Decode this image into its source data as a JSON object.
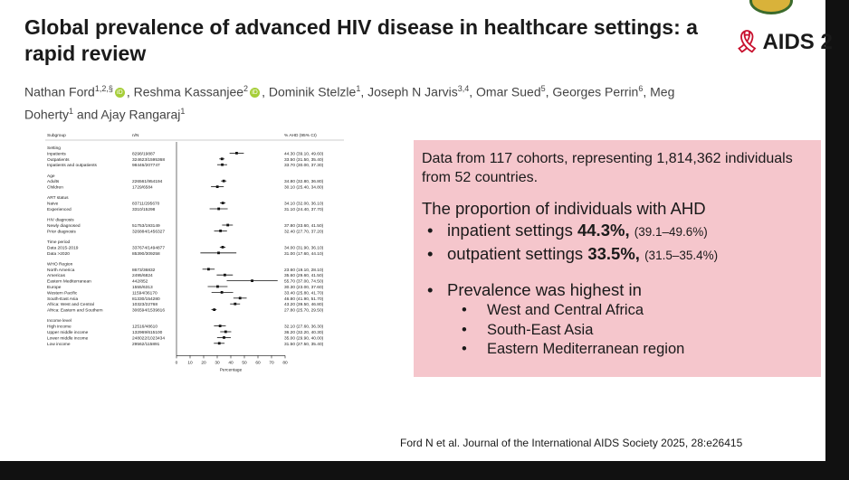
{
  "title": "Global prevalence of advanced HIV disease in healthcare settings: a rapid review",
  "logo_text": "AIDS 2",
  "authors": [
    {
      "name": "Nathan Ford",
      "sup": "1,2,§",
      "orcid": true,
      "sep": ", "
    },
    {
      "name": "Reshma Kassanjee",
      "sup": "2",
      "orcid": true,
      "sep": ", "
    },
    {
      "name": "Dominik Stelzle",
      "sup": "1",
      "orcid": false,
      "sep": ", "
    },
    {
      "name": "Joseph N Jarvis",
      "sup": "3,4",
      "orcid": false,
      "sep": ", "
    },
    {
      "name": "Omar Sued",
      "sup": "5",
      "orcid": false,
      "sep": ", "
    },
    {
      "name": "Georges Perrin",
      "sup": "6",
      "orcid": false,
      "sep": ", "
    },
    {
      "name": "Meg Doherty",
      "sup": "1",
      "orcid": false,
      "sep": " and "
    },
    {
      "name": "Ajay Rangaraj",
      "sup": "1",
      "orcid": false,
      "sep": ""
    }
  ],
  "summary": {
    "cohorts_line": "Data from 117 cohorts, representing 1,814,362 individuals from 52 countries.",
    "proportion_heading": "The proportion of individuals with AHD",
    "settings": [
      {
        "label": "inpatient settings",
        "value": "44.3%,",
        "ci": "(39.1–49.6%)"
      },
      {
        "label": "outpatient settings",
        "value": "33.5%,",
        "ci": "(31.5–35.4%)"
      }
    ],
    "highest_heading": "Prevalence was highest in",
    "regions": [
      "West and Central Africa",
      "South-East Asia",
      "Eastern Mediterranean region"
    ]
  },
  "citation": "Ford N et al. Journal of the International AIDS Society 2025, 28:e26415",
  "chart_data": {
    "type": "forest",
    "columns": [
      "Subgroup",
      "n/N",
      "% AHD (95% CI)"
    ],
    "xlabel": "Percentage",
    "xlim": [
      0,
      80
    ],
    "xticks": [
      0,
      10,
      20,
      30,
      40,
      50,
      60,
      70,
      80
    ],
    "groups": [
      {
        "name": "Setting",
        "rows": [
          {
            "label": "Inpatients",
            "n": "8298/19887",
            "est": 44.3,
            "lo": 39.1,
            "hi": 49.6,
            "text": "44.30 (39.10, 49.60)"
          },
          {
            "label": "Outpatients",
            "n": "324623/1595368",
            "est": 33.5,
            "lo": 31.5,
            "hi": 35.4,
            "text": "33.50 (31.50, 35.40)"
          },
          {
            "label": "Inpatients and outpatients",
            "n": "98446/207747",
            "est": 33.7,
            "lo": 30.0,
            "hi": 37.3,
            "text": "33.70 (30.00, 37.30)"
          }
        ]
      },
      {
        "name": "Age",
        "rows": [
          {
            "label": "Adults",
            "n": "226561/954194",
            "est": 34.8,
            "lo": 32.8,
            "hi": 36.8,
            "text": "34.80 (32.80, 36.80)"
          },
          {
            "label": "Children",
            "n": "1729/6584",
            "est": 30.1,
            "lo": 25.4,
            "hi": 34.8,
            "text": "30.10 (25.40, 34.80)"
          }
        ]
      },
      {
        "name": "ART status",
        "rows": [
          {
            "label": "Naive",
            "n": "83711/295670",
            "est": 34.1,
            "lo": 32.0,
            "hi": 36.1,
            "text": "34.10 (32.00, 36.10)"
          },
          {
            "label": "Experienced",
            "n": "3310/15298",
            "est": 31.1,
            "lo": 24.4,
            "hi": 37.7,
            "text": "31.10 (24.40, 37.70)"
          }
        ]
      },
      {
        "name": "HIV diagnosis",
        "rows": [
          {
            "label": "Newly diagnosed",
            "n": "51753/193149",
            "est": 37.8,
            "lo": 33.6,
            "hi": 41.5,
            "text": "37.80 (33.60, 41.50)"
          },
          {
            "label": "Prior diagnosis",
            "n": "326884/1456327",
            "est": 32.4,
            "lo": 27.7,
            "hi": 37.2,
            "text": "32.40 (27.70, 37.20)"
          }
        ]
      },
      {
        "name": "Time period",
        "rows": [
          {
            "label": "Data 2015-2019",
            "n": "337674/1494877",
            "est": 34.0,
            "lo": 31.9,
            "hi": 36.1,
            "text": "34.00 (31.90, 36.10)"
          },
          {
            "label": "Data >2020",
            "n": "85390/309258",
            "est": 31.0,
            "lo": 17.6,
            "hi": 44.1,
            "text": "31.00 (17.60, 44.10)"
          }
        ]
      },
      {
        "name": "WHO Region",
        "rows": [
          {
            "label": "North America",
            "n": "8673/36832",
            "est": 23.6,
            "lo": 19.1,
            "hi": 28.1,
            "text": "23.60 (19.10, 28.10)"
          },
          {
            "label": "Americas",
            "n": "2495/6824",
            "est": 35.6,
            "lo": 29.6,
            "hi": 41.5,
            "text": "35.60 (29.60, 41.50)"
          },
          {
            "label": "Eastern Mediterranean",
            "n": "442/852",
            "est": 55.7,
            "lo": 37.0,
            "hi": 74.5,
            "text": "55.70 (37.00, 74.50)"
          },
          {
            "label": "Europe",
            "n": "1555/6313",
            "est": 30.3,
            "lo": 23.0,
            "hi": 37.6,
            "text": "30.30 (23.00, 37.60)"
          },
          {
            "label": "Western Pacific",
            "n": "11594/36170",
            "est": 33.4,
            "lo": 25.8,
            "hi": 41.7,
            "text": "33.40 (25.80, 41.70)"
          },
          {
            "label": "South-East Asia",
            "n": "81330/154280",
            "est": 46.8,
            "lo": 41.9,
            "hi": 51.7,
            "text": "46.80 (41.90, 51.70)"
          },
          {
            "label": "Africa: West and Central",
            "n": "10323/22768",
            "est": 43.2,
            "lo": 39.5,
            "hi": 46.8,
            "text": "43.20 (39.50, 46.80)"
          },
          {
            "label": "Africa: Eastern and Southern",
            "n": "306594/1539816",
            "est": 27.8,
            "lo": 25.7,
            "hi": 29.5,
            "text": "27.80 (25.70, 29.50)"
          }
        ]
      },
      {
        "name": "Income level",
        "rows": [
          {
            "label": "High income",
            "n": "12516/48610",
            "est": 32.1,
            "lo": 27.6,
            "hi": 36.3,
            "text": "32.10 (27.60, 36.30)"
          },
          {
            "label": "Upper middle income",
            "n": "132969/615100",
            "est": 36.2,
            "lo": 32.2,
            "hi": 40.3,
            "text": "36.20 (32.20, 40.30)"
          },
          {
            "label": "Lower middle income",
            "n": "248022/1023434",
            "est": 35.0,
            "lo": 29.9,
            "hi": 40.0,
            "text": "35.00 (29.90, 40.00)"
          },
          {
            "label": "Low income",
            "n": "29562/115891",
            "est": 31.5,
            "lo": 27.5,
            "hi": 35.4,
            "text": "31.50 (27.50, 35.40)"
          }
        ]
      }
    ]
  }
}
